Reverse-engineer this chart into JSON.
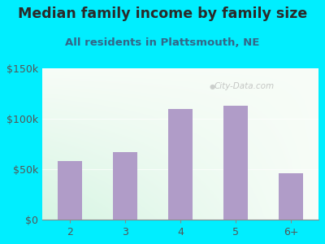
{
  "title": "Median family income by family size",
  "subtitle": "All residents in Plattsmouth, NE",
  "categories": [
    "2",
    "3",
    "4",
    "5",
    "6+"
  ],
  "values": [
    58000,
    67000,
    110000,
    113000,
    46000
  ],
  "bar_color": "#b09cc8",
  "ylim": [
    0,
    150000
  ],
  "yticks": [
    0,
    50000,
    100000,
    150000
  ],
  "ytick_labels": [
    "$0",
    "$50k",
    "$100k",
    "$150k"
  ],
  "background_outer": "#00eeff",
  "title_color": "#2a2a2a",
  "subtitle_color": "#336688",
  "watermark": "City-Data.com",
  "title_fontsize": 12.5,
  "subtitle_fontsize": 9.5,
  "tick_color": "#555555"
}
